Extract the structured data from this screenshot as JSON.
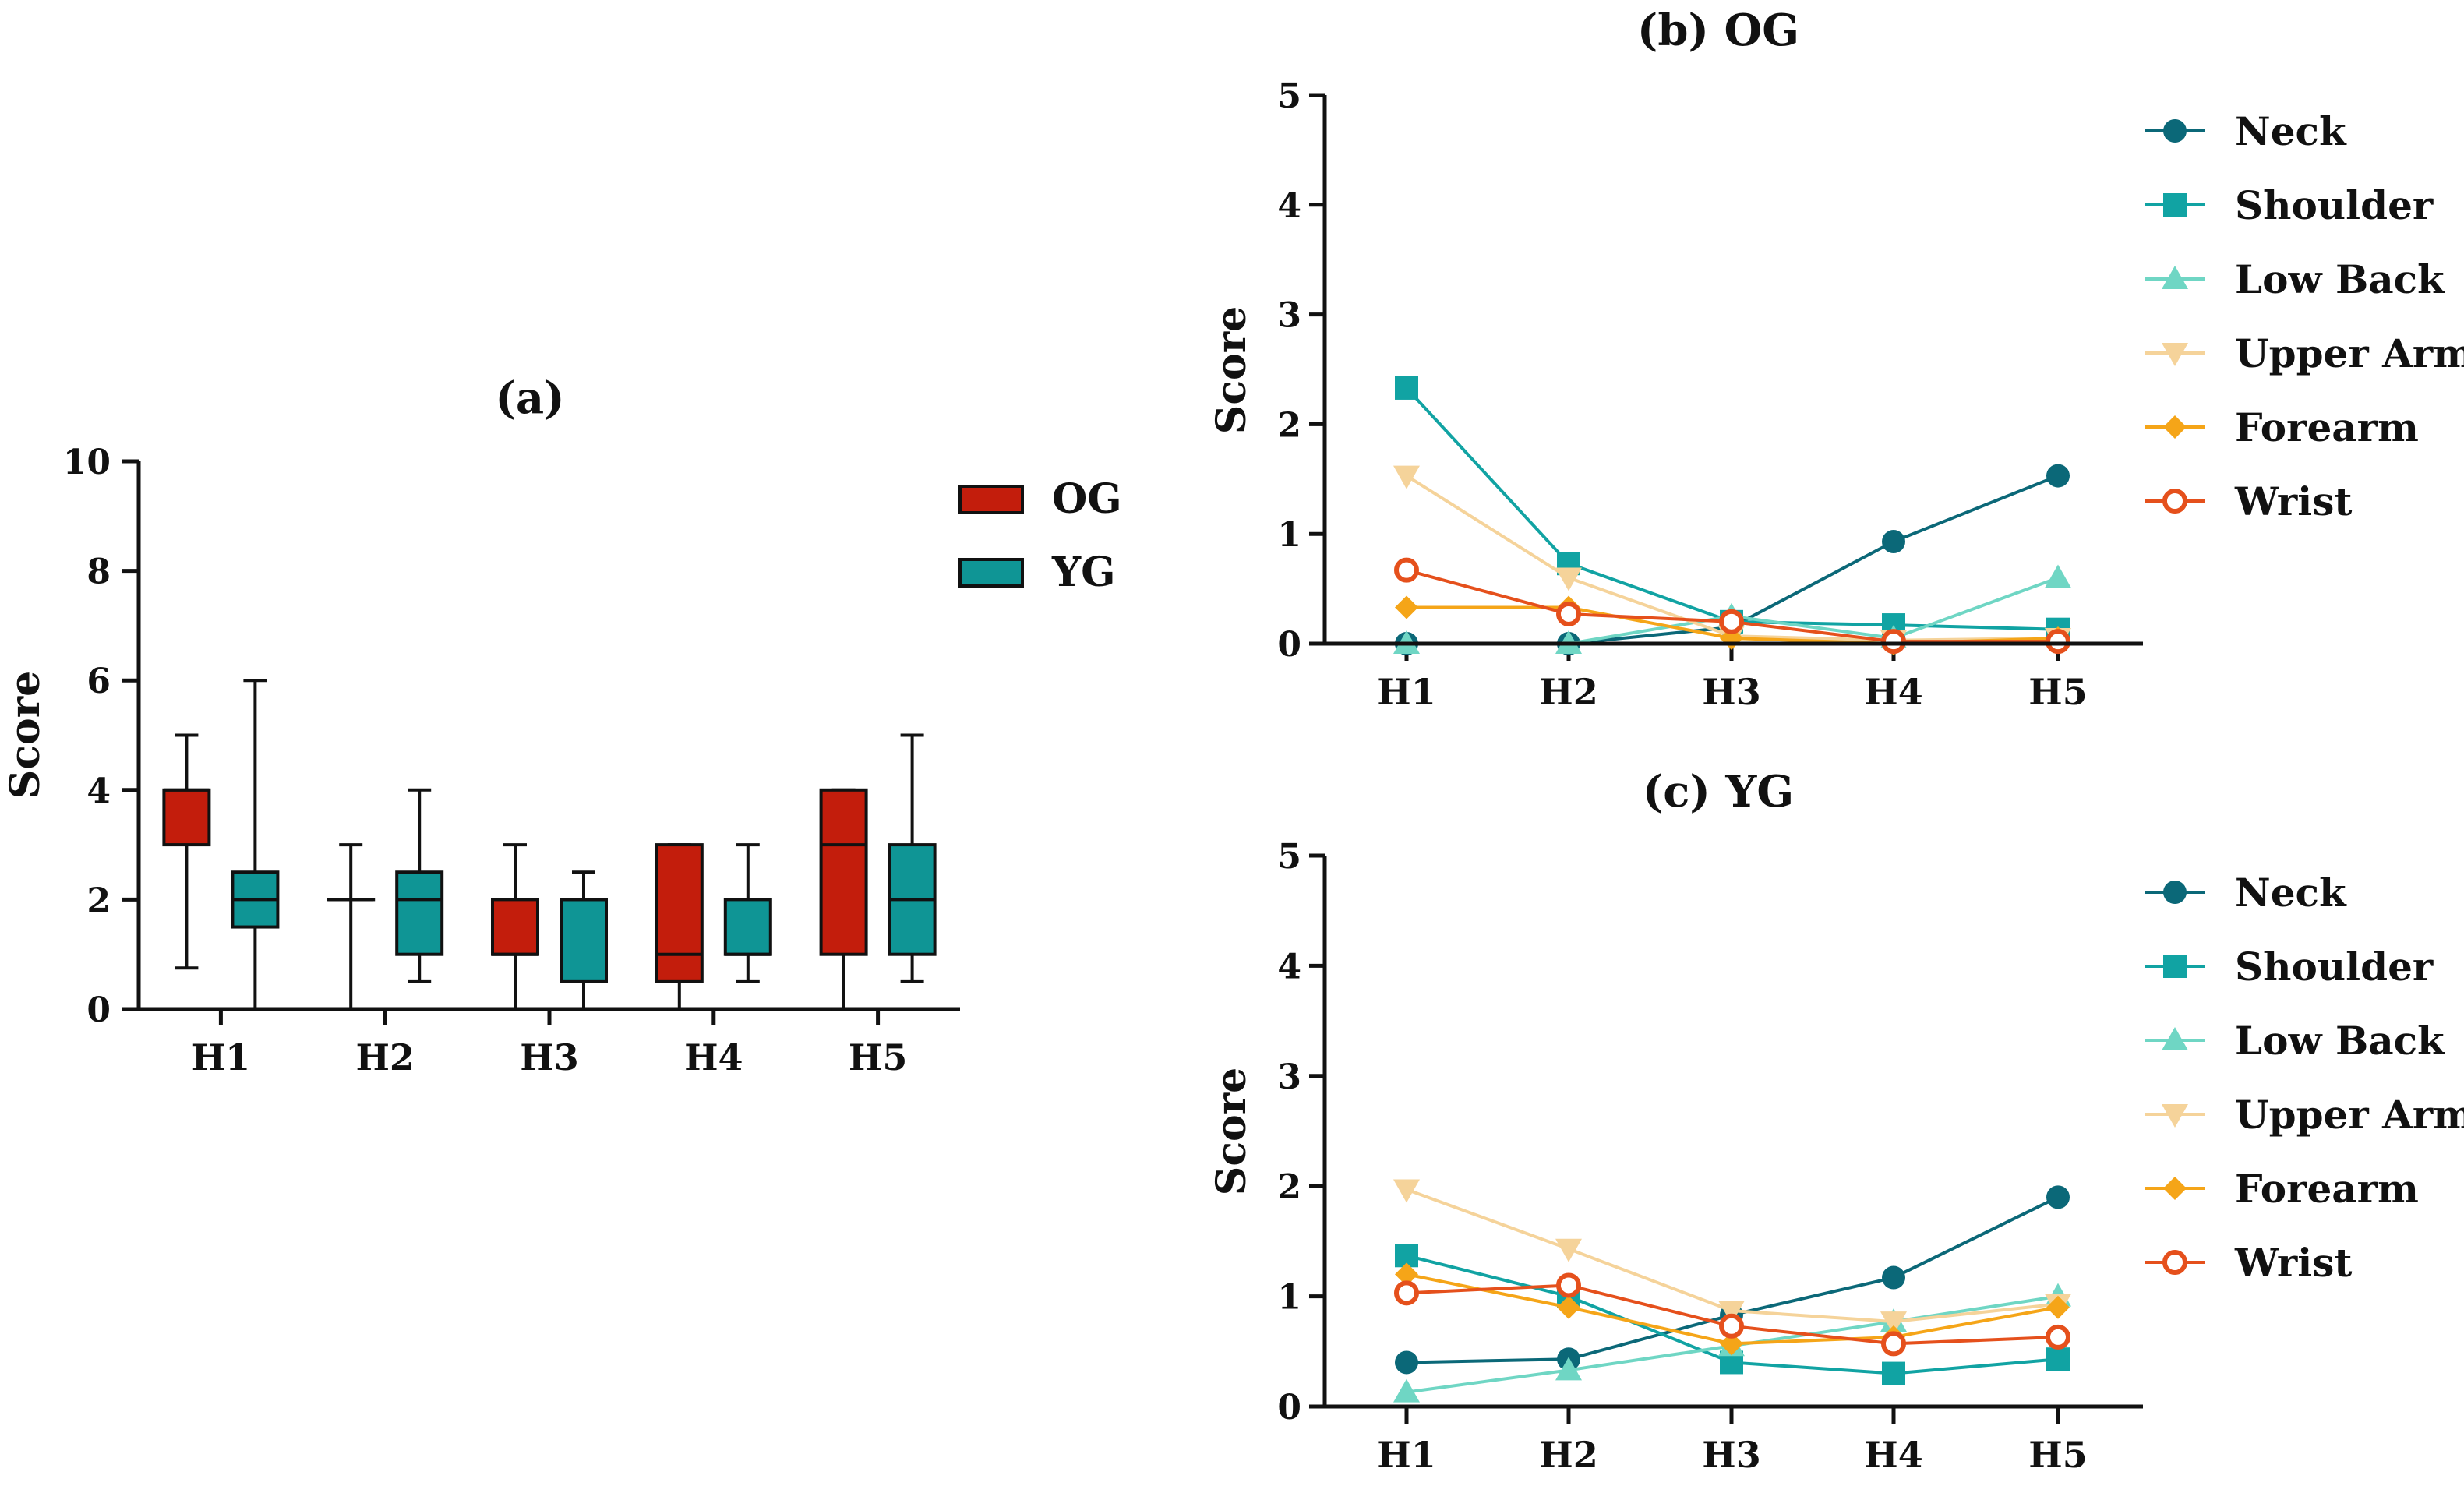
{
  "colors": {
    "og": "#c31d0c",
    "yg": "#0f9595",
    "neck": "#0b6878",
    "shoulder": "#11a3a3",
    "lowback": "#6fd6c4",
    "upperarm": "#f5d39a",
    "forearm": "#f5a518",
    "wrist": "#e5501c",
    "axis": "#111111"
  },
  "chart_data": [
    {
      "type": "box",
      "title": "(a)",
      "ylabel": "Score",
      "ylim": [
        0,
        10
      ],
      "yticks": [
        "0",
        "2",
        "4",
        "6",
        "8",
        "10"
      ],
      "categories": [
        "H1",
        "H2",
        "H3",
        "H4",
        "H5"
      ],
      "legend": [
        "OG",
        "YG"
      ],
      "series": [
        {
          "name": "OG",
          "boxes": [
            {
              "min": 0.75,
              "q1": 3,
              "median": 4,
              "q3": 4,
              "max": 5
            },
            {
              "min": 0,
              "q1": 2,
              "median": 2,
              "q3": 2,
              "max": 3
            },
            {
              "min": 0,
              "q1": 1,
              "median": 1,
              "q3": 2,
              "max": 3
            },
            {
              "min": 0,
              "q1": 0.5,
              "median": 1,
              "q3": 3,
              "max": 3
            },
            {
              "min": 0,
              "q1": 1,
              "median": 3,
              "q3": 4,
              "max": 4
            }
          ]
        },
        {
          "name": "YG",
          "boxes": [
            {
              "min": 0,
              "q1": 1.5,
              "median": 2,
              "q3": 2.5,
              "max": 6
            },
            {
              "min": 0.5,
              "q1": 1,
              "median": 2,
              "q3": 2.5,
              "max": 4
            },
            {
              "min": 0,
              "q1": 0.5,
              "median": 2,
              "q3": 2,
              "max": 2.5
            },
            {
              "min": 0.5,
              "q1": 1,
              "median": 1,
              "q3": 2,
              "max": 3
            },
            {
              "min": 0.5,
              "q1": 1,
              "median": 2,
              "q3": 3,
              "max": 5
            }
          ]
        }
      ]
    },
    {
      "type": "line",
      "title": "(b) OG",
      "ylabel": "Score",
      "ylim": [
        0,
        5
      ],
      "yticks": [
        "0",
        "1",
        "2",
        "3",
        "4",
        "5"
      ],
      "categories": [
        "H1",
        "H2",
        "H3",
        "H4",
        "H5"
      ],
      "series": [
        {
          "name": "Neck",
          "values": [
            0,
            0,
            0.15,
            0.93,
            1.53
          ]
        },
        {
          "name": "Shoulder",
          "values": [
            2.33,
            0.73,
            0.2,
            0.17,
            0.13
          ]
        },
        {
          "name": "Low Back",
          "values": [
            0,
            0,
            0.25,
            0.05,
            0.6
          ]
        },
        {
          "name": "Upper Arm",
          "values": [
            1.53,
            0.6,
            0.07,
            0.03,
            0.05
          ]
        },
        {
          "name": "Forearm",
          "values": [
            0.33,
            0.33,
            0.05,
            0,
            0.05
          ]
        },
        {
          "name": "Wrist",
          "values": [
            0.67,
            0.27,
            0.2,
            0.02,
            0.02
          ]
        }
      ]
    },
    {
      "type": "line",
      "title": "(c) YG",
      "ylabel": "Score",
      "ylim": [
        0,
        5
      ],
      "yticks": [
        "0",
        "1",
        "2",
        "3",
        "4",
        "5"
      ],
      "categories": [
        "H1",
        "H2",
        "H3",
        "H4",
        "H5"
      ],
      "series": [
        {
          "name": "Neck",
          "values": [
            0.4,
            0.43,
            0.83,
            1.17,
            1.9
          ]
        },
        {
          "name": "Shoulder",
          "values": [
            1.37,
            1.0,
            0.4,
            0.3,
            0.43
          ]
        },
        {
          "name": "Low Back",
          "values": [
            0.13,
            0.33,
            0.55,
            0.77,
            1.0
          ]
        },
        {
          "name": "Upper Arm",
          "values": [
            1.97,
            1.43,
            0.87,
            0.77,
            0.93
          ]
        },
        {
          "name": "Forearm",
          "values": [
            1.2,
            0.9,
            0.57,
            0.63,
            0.9
          ]
        },
        {
          "name": "Wrist",
          "values": [
            1.03,
            1.1,
            0.73,
            0.57,
            0.63
          ]
        }
      ]
    }
  ]
}
